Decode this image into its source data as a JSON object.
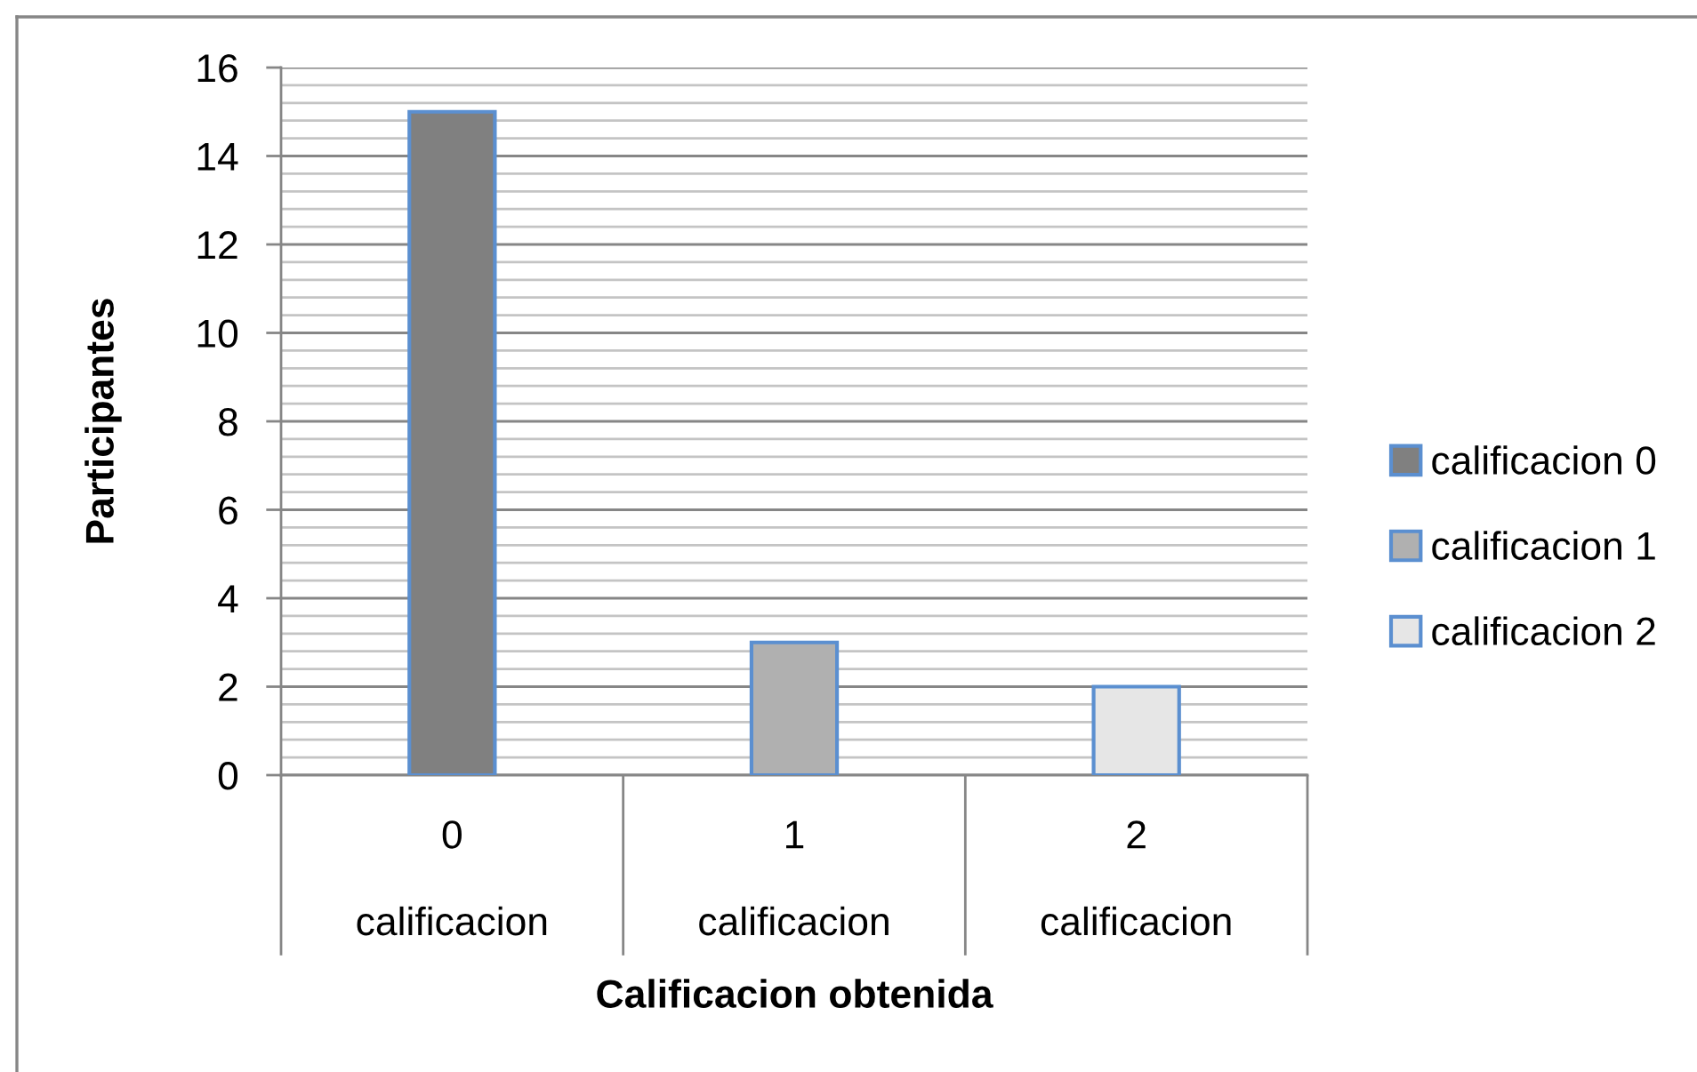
{
  "chart_data": {
    "type": "bar",
    "stacked": true,
    "categories": [
      "0\ncalificacion",
      "1\ncalificacion",
      "2\ncalificacion"
    ],
    "series": [
      {
        "name": "calificacion 0",
        "color": "#808080",
        "values": [
          15,
          null,
          null
        ]
      },
      {
        "name": "calificacion 1",
        "color": "#b0b0b0",
        "values": [
          null,
          3,
          null
        ]
      },
      {
        "name": "calificacion 2",
        "color": "#e6e6e6",
        "values": [
          null,
          null,
          2
        ]
      }
    ],
    "xlabel": "Calificacion obtenida",
    "ylabel": "Participantes",
    "ylim": [
      0,
      16
    ],
    "yticks": [
      0,
      {
        "value": 0.4,
        "label": null
      },
      {
        "value": 0.8,
        "label": null
      },
      {
        "value": 1.2,
        "label": null
      },
      {
        "value": 1.6,
        "label": null
      },
      2,
      {
        "value": 2.4,
        "label": null
      },
      {
        "value": 2.8,
        "label": null
      },
      {
        "value": 3.2,
        "label": null
      },
      {
        "value": 3.6,
        "label": null
      },
      4,
      {
        "value": 4.4,
        "label": null
      },
      {
        "value": 4.8,
        "label": null
      },
      {
        "value": 5.2,
        "label": null
      },
      {
        "value": 5.6,
        "label": null
      },
      6,
      {
        "value": 6.4,
        "label": null
      },
      {
        "value": 6.8,
        "label": null
      },
      {
        "value": 7.2,
        "label": null
      },
      {
        "value": 7.6,
        "label": null
      },
      8,
      {
        "value": 8.4,
        "label": null
      },
      {
        "value": 8.8,
        "label": null
      },
      {
        "value": 9.2,
        "label": null
      },
      {
        "value": 9.6,
        "label": null
      },
      10,
      {
        "value": 10.4,
        "label": null
      },
      {
        "value": 10.8,
        "label": null
      },
      {
        "value": 11.2,
        "label": null
      },
      {
        "value": 11.6,
        "label": null
      },
      12,
      {
        "value": 12.4,
        "label": null
      },
      {
        "value": 12.8,
        "label": null
      },
      {
        "value": 13.2,
        "label": null
      },
      {
        "value": 13.6,
        "label": null
      },
      14,
      {
        "value": 14.4,
        "label": null
      },
      {
        "value": 14.8,
        "label": null
      },
      {
        "value": 15.2,
        "label": null
      },
      {
        "value": 15.6,
        "label": null
      },
      16
    ],
    "grid": "y",
    "legend": "right"
  }
}
